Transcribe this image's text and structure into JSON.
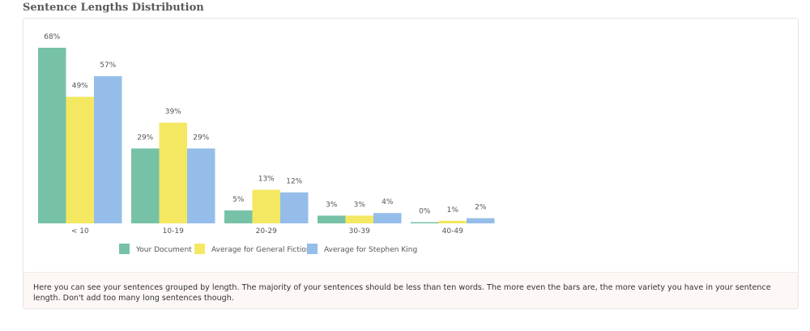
{
  "page": {
    "title": "Sentence Lengths Distribution"
  },
  "description": "Here you can see your sentences grouped by length. The majority of your sentences should be less than ten words. The more even the bars are, the more variety you have in your sentence length. Don't add too many long sentences though.",
  "chart_data": {
    "type": "bar",
    "title": "",
    "xlabel": "",
    "ylabel": "",
    "ylim": [
      0,
      68
    ],
    "grid": false,
    "legend": "bottom",
    "categories": [
      "< 10",
      "10-19",
      "20-29",
      "30-39",
      "40-49"
    ],
    "series": [
      {
        "name": "Your Document",
        "color": "#77c2a6",
        "values": [
          68,
          29,
          5,
          3,
          0
        ],
        "labels": [
          "68%",
          "29%",
          "5%",
          "3%",
          "0%"
        ]
      },
      {
        "name": "Average for General Fiction",
        "color": "#f4e862",
        "values": [
          49,
          39,
          13,
          3,
          1
        ],
        "labels": [
          "49%",
          "39%",
          "13%",
          "3%",
          "1%"
        ]
      },
      {
        "name": "Average for Stephen King",
        "color": "#95bdea",
        "values": [
          57,
          29,
          12,
          4,
          2
        ],
        "labels": [
          "57%",
          "29%",
          "12%",
          "4%",
          "2%"
        ]
      }
    ]
  }
}
